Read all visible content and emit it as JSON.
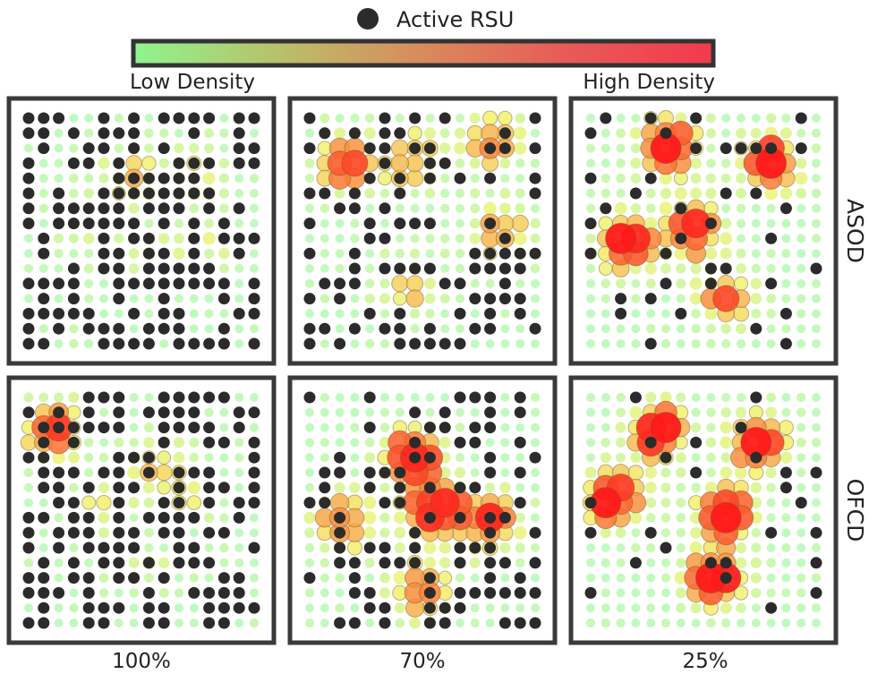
{
  "legend": {
    "marker_label": "Active RSU",
    "marker_color": "#2b2b2b",
    "colorbar_low_label": "Low Density",
    "colorbar_high_label": "High Density",
    "colorbar_colors": [
      "#8ef58e",
      "#b9c06a",
      "#d98a5c",
      "#e85a56",
      "#f23a4d"
    ]
  },
  "chart_data": {
    "type": "heatmap",
    "description_rows": [
      "ASOD",
      "OFCD"
    ],
    "description_cols": [
      "100%",
      "70%",
      "25%"
    ],
    "grid_size": 16,
    "color_scale": {
      "low": "#8ef58e",
      "mid": "#f2f05a",
      "high": "#ff1a1a",
      "range": [
        0,
        1
      ]
    },
    "panels": [
      {
        "row": "ASOD",
        "col": "100%",
        "active_rsu_fraction": 1.0,
        "hotspots": [
          {
            "c": 0.45,
            "r": 0.25,
            "w": 0.55
          },
          {
            "c": 0.75,
            "r": 0.26,
            "w": 0.45
          },
          {
            "c": 0.25,
            "r": 0.48,
            "w": 0.35
          },
          {
            "c": 0.55,
            "r": 0.62,
            "w": 0.3
          },
          {
            "c": 0.8,
            "r": 0.55,
            "w": 0.3
          }
        ]
      },
      {
        "row": "ASOD",
        "col": "70%",
        "active_rsu_fraction": 0.7,
        "hotspots": [
          {
            "c": 0.15,
            "r": 0.2,
            "w": 0.85
          },
          {
            "c": 0.45,
            "r": 0.18,
            "w": 0.75
          },
          {
            "c": 0.8,
            "r": 0.1,
            "w": 0.8
          },
          {
            "c": 0.85,
            "r": 0.5,
            "w": 0.7
          },
          {
            "c": 0.45,
            "r": 0.75,
            "w": 0.6
          }
        ]
      },
      {
        "row": "ASOD",
        "col": "25%",
        "active_rsu_fraction": 0.25,
        "hotspots": [
          {
            "c": 0.35,
            "r": 0.12,
            "w": 1.0
          },
          {
            "c": 0.8,
            "r": 0.2,
            "w": 1.0
          },
          {
            "c": 0.15,
            "r": 0.55,
            "w": 1.0
          },
          {
            "c": 0.45,
            "r": 0.5,
            "w": 0.9
          },
          {
            "c": 0.6,
            "r": 0.8,
            "w": 0.8
          }
        ]
      },
      {
        "row": "OFCD",
        "col": "100%",
        "active_rsu_fraction": 1.0,
        "hotspots": [
          {
            "c": 0.1,
            "r": 0.15,
            "w": 0.9
          },
          {
            "c": 0.55,
            "r": 0.3,
            "w": 0.5
          },
          {
            "c": 0.3,
            "r": 0.5,
            "w": 0.45
          },
          {
            "c": 0.7,
            "r": 0.42,
            "w": 0.45
          },
          {
            "c": 0.5,
            "r": 0.75,
            "w": 0.35
          }
        ]
      },
      {
        "row": "OFCD",
        "col": "70%",
        "active_rsu_fraction": 0.7,
        "hotspots": [
          {
            "c": 0.45,
            "r": 0.25,
            "w": 1.0
          },
          {
            "c": 0.55,
            "r": 0.5,
            "w": 1.0
          },
          {
            "c": 0.15,
            "r": 0.55,
            "w": 0.85
          },
          {
            "c": 0.8,
            "r": 0.55,
            "w": 0.9
          },
          {
            "c": 0.5,
            "r": 0.85,
            "w": 0.9
          }
        ]
      },
      {
        "row": "OFCD",
        "col": "25%",
        "active_rsu_fraction": 0.25,
        "hotspots": [
          {
            "c": 0.3,
            "r": 0.15,
            "w": 1.0
          },
          {
            "c": 0.75,
            "r": 0.2,
            "w": 1.0
          },
          {
            "c": 0.1,
            "r": 0.45,
            "w": 1.0
          },
          {
            "c": 0.6,
            "r": 0.5,
            "w": 1.0
          },
          {
            "c": 0.55,
            "r": 0.8,
            "w": 1.0
          }
        ]
      }
    ]
  }
}
